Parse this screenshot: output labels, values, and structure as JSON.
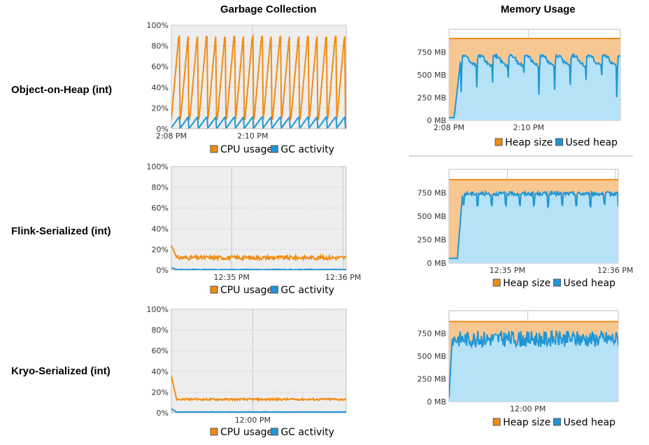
{
  "headers": {
    "gc": "Garbage Collection",
    "mem": "Memory Usage"
  },
  "rows": [
    "Object-on-Heap (int)",
    "Flink-Serialized (int)",
    "Kryo-Serialized (int)"
  ],
  "colors": {
    "orange": "#f08c12",
    "blue": "#1f96d6",
    "heap_fill": "#f7c792",
    "used_fill": "#b6e2f7",
    "plot_bg": "#eeeeee"
  },
  "chart_data": [
    {
      "id": "gc-object-on-heap",
      "type": "line",
      "title": "",
      "yticks": [
        "0%",
        "20%",
        "40%",
        "60%",
        "80%",
        "100%"
      ],
      "ylim": [
        0,
        100
      ],
      "xlim": [
        0,
        4.3
      ],
      "xticks": [
        {
          "x": 0,
          "label": "2:08 PM"
        },
        {
          "x": 2,
          "label": "2:10 PM"
        }
      ],
      "legend": [
        "CPU usage",
        "GC activity"
      ],
      "legend_placement": "bottom-right",
      "series": [
        {
          "name": "CPU usage",
          "color": "#f08c12",
          "pattern": "sawtooth",
          "cycles": 19,
          "low": 9,
          "high": 89
        },
        {
          "name": "GC activity",
          "color": "#1f96d6",
          "pattern": "sawtooth",
          "cycles": 19,
          "low": 1,
          "high": 11
        }
      ]
    },
    {
      "id": "mem-object-on-heap",
      "type": "area",
      "title": "",
      "yticks": [
        "0 MB",
        "250 MB",
        "500 MB",
        "750 MB"
      ],
      "ylim": [
        0,
        1000
      ],
      "xlim": [
        0,
        4.3
      ],
      "xticks": [
        {
          "x": 0,
          "label": "2:08 PM"
        },
        {
          "x": 2,
          "label": "2:10 PM"
        }
      ],
      "legend": [
        "Heap size",
        "Used heap"
      ],
      "legend_placement": "bottom-right",
      "series": [
        {
          "name": "Heap size",
          "color": "#f08c12",
          "pattern": "flat",
          "level": 900
        },
        {
          "name": "Used heap",
          "color": "#1f96d6",
          "pattern": "drops",
          "cycles": 11,
          "low": 250,
          "high": 700
        }
      ]
    },
    {
      "id": "gc-flink",
      "type": "line",
      "title": "",
      "yticks": [
        "0%",
        "20%",
        "40%",
        "60%",
        "80%",
        "100%"
      ],
      "ylim": [
        0,
        100
      ],
      "xlim": [
        0,
        2.9
      ],
      "xticks": [
        {
          "x": 1,
          "label": "12:35 PM"
        },
        {
          "x": 2.85,
          "label": "12:36 PM"
        }
      ],
      "legend": [
        "CPU usage",
        "GC activity"
      ],
      "legend_placement": "bottom-right",
      "series": [
        {
          "name": "CPU usage",
          "color": "#f08c12",
          "pattern": "noisy",
          "level": 12,
          "amp": 2,
          "spike": 20
        },
        {
          "name": "GC activity",
          "color": "#1f96d6",
          "pattern": "noisy",
          "level": 0.5,
          "amp": 0.3,
          "spike": 3
        }
      ]
    },
    {
      "id": "mem-flink",
      "type": "area",
      "title": "",
      "yticks": [
        "0 MB",
        "250 MB",
        "500 MB",
        "750 MB"
      ],
      "ylim": [
        0,
        1000
      ],
      "xlim": [
        0,
        2.9
      ],
      "xticks": [
        {
          "x": 1,
          "label": "12:35 PM"
        },
        {
          "x": 2.85,
          "label": "12:36 PM"
        }
      ],
      "legend": [
        "Heap size",
        "Used heap"
      ],
      "legend_placement": "bottom-right",
      "series": [
        {
          "name": "Heap size",
          "color": "#f08c12",
          "pattern": "flat",
          "level": 890
        },
        {
          "name": "Used heap",
          "color": "#1f96d6",
          "pattern": "plateau",
          "level": 740,
          "amp": 40,
          "dips": 12
        }
      ]
    },
    {
      "id": "gc-kryo",
      "type": "line",
      "title": "",
      "yticks": [
        "0%",
        "20%",
        "40%",
        "60%",
        "80%",
        "100%"
      ],
      "ylim": [
        0,
        100
      ],
      "xlim": [
        0,
        2.9
      ],
      "xticks": [
        {
          "x": 1.35,
          "label": "12:00 PM"
        }
      ],
      "legend": [
        "CPU usage",
        "GC activity"
      ],
      "legend_placement": "bottom-right",
      "series": [
        {
          "name": "CPU usage",
          "color": "#f08c12",
          "pattern": "noisy",
          "level": 13,
          "amp": 1,
          "spike": 38
        },
        {
          "name": "GC activity",
          "color": "#1f96d6",
          "pattern": "noisy",
          "level": 0.8,
          "amp": 0.2,
          "spike": 5
        }
      ]
    },
    {
      "id": "mem-kryo",
      "type": "area",
      "title": "",
      "yticks": [
        "0 MB",
        "250 MB",
        "500 MB",
        "750 MB"
      ],
      "ylim": [
        0,
        1000
      ],
      "xlim": [
        0,
        2.9
      ],
      "xticks": [
        {
          "x": 1.35,
          "label": "12:00 PM"
        }
      ],
      "legend": [
        "Heap size",
        "Used heap"
      ],
      "legend_placement": "bottom-right",
      "series": [
        {
          "name": "Heap size",
          "color": "#f08c12",
          "pattern": "flat",
          "level": 880
        },
        {
          "name": "Used heap",
          "color": "#1f96d6",
          "pattern": "jitter",
          "level": 690,
          "amp": 90
        }
      ]
    }
  ]
}
